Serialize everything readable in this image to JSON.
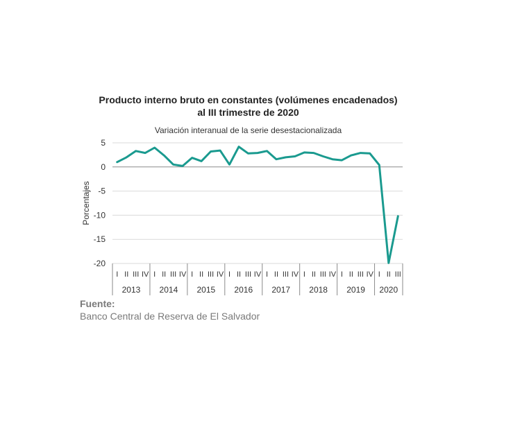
{
  "chart_data": {
    "type": "line",
    "title_line1": "Producto interno bruto en constantes (volúmenes encadenados)",
    "title_line2": "al III trimestre de 2020",
    "subtitle": "Variación interanual de la serie desestacionalizada",
    "ylabel": "Porcentajes",
    "xlabel": "",
    "ylim": [
      -20,
      5
    ],
    "yticks": [
      "5",
      "0",
      "-5",
      "-10",
      "-15",
      "-20"
    ],
    "ytick_values": [
      5,
      0,
      -5,
      -10,
      -15,
      -20
    ],
    "grid": true,
    "series": [
      {
        "color": "#1a9a8f",
        "values": [
          1.0,
          2.0,
          3.3,
          2.9,
          4.0,
          2.4,
          0.5,
          0.2,
          1.9,
          1.2,
          3.2,
          3.4,
          0.5,
          4.2,
          2.8,
          2.9,
          3.3,
          1.6,
          2.0,
          2.2,
          3.0,
          2.9,
          2.2,
          1.6,
          1.4,
          2.4,
          2.9,
          2.8,
          0.4,
          -19.9,
          -10.2
        ]
      }
    ],
    "quarter_labels": [
      "I",
      "II",
      "III",
      "IV"
    ],
    "years": [
      {
        "label": "2013",
        "quarters": 4
      },
      {
        "label": "2014",
        "quarters": 4
      },
      {
        "label": "2015",
        "quarters": 4
      },
      {
        "label": "2016",
        "quarters": 4
      },
      {
        "label": "2017",
        "quarters": 4
      },
      {
        "label": "2018",
        "quarters": 4
      },
      {
        "label": "2019",
        "quarters": 4
      },
      {
        "label": "2020",
        "quarters": 3
      }
    ]
  },
  "source": {
    "label": "Fuente:",
    "text": "Banco Central de Reserva de El Salvador"
  }
}
